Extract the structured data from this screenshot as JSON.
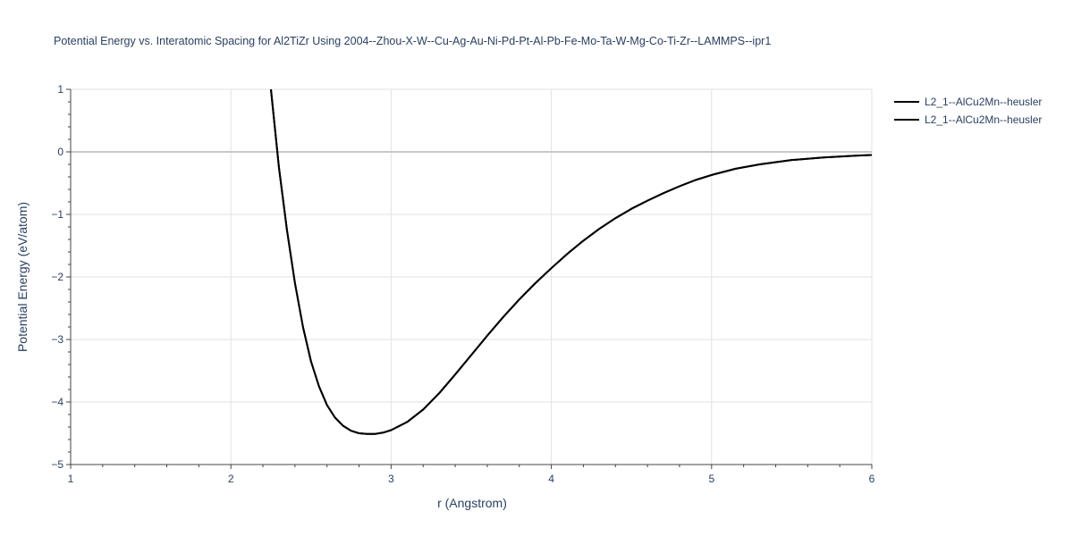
{
  "chart_data": {
    "type": "line",
    "title": "Potential Energy vs. Interatomic Spacing for Al2TiZr Using 2004--Zhou-X-W--Cu-Ag-Au-Ni-Pd-Pt-Al-Pb-Fe-Mo-Ta-W-Mg-Co-Ti-Zr--LAMMPS--ipr1",
    "xlabel": "r (Angstrom)",
    "ylabel": "Potential Energy (eV/atom)",
    "xlim": [
      1,
      6
    ],
    "ylim": [
      -5,
      1
    ],
    "xticks": [
      "1",
      "2",
      "3",
      "4",
      "5",
      "6"
    ],
    "yticks": [
      "−5",
      "−4",
      "−3",
      "−2",
      "−1",
      "0",
      "1"
    ],
    "grid": true,
    "legend_position": "top-right",
    "series": [
      {
        "name": "L2_1--AlCu2Mn--heusler",
        "color": "#000000",
        "x": [
          2.25,
          2.3,
          2.35,
          2.4,
          2.45,
          2.5,
          2.55,
          2.6,
          2.65,
          2.7,
          2.75,
          2.8,
          2.85,
          2.9,
          2.95,
          3.0,
          3.1,
          3.2,
          3.3,
          3.4,
          3.5,
          3.6,
          3.7,
          3.8,
          3.9,
          4.0,
          4.1,
          4.2,
          4.3,
          4.4,
          4.5,
          4.6,
          4.7,
          4.8,
          4.9,
          5.0,
          5.15,
          5.3,
          5.5,
          5.7,
          5.9,
          6.0
        ],
        "y": [
          1.0,
          -0.25,
          -1.25,
          -2.1,
          -2.8,
          -3.35,
          -3.75,
          -4.05,
          -4.25,
          -4.38,
          -4.46,
          -4.5,
          -4.51,
          -4.51,
          -4.49,
          -4.45,
          -4.32,
          -4.12,
          -3.86,
          -3.56,
          -3.25,
          -2.94,
          -2.64,
          -2.36,
          -2.1,
          -1.86,
          -1.63,
          -1.42,
          -1.23,
          -1.06,
          -0.91,
          -0.78,
          -0.66,
          -0.55,
          -0.45,
          -0.37,
          -0.27,
          -0.2,
          -0.13,
          -0.09,
          -0.06,
          -0.05
        ]
      },
      {
        "name": "L2_1--AlCu2Mn--heusler",
        "color": "#000000",
        "x": [
          2.25,
          2.3,
          2.35,
          2.4,
          2.45,
          2.5,
          2.55,
          2.6,
          2.65,
          2.7,
          2.75,
          2.8,
          2.85,
          2.9,
          2.95,
          3.0,
          3.1,
          3.2,
          3.3,
          3.4,
          3.5,
          3.6,
          3.7,
          3.8,
          3.9,
          4.0,
          4.1,
          4.2,
          4.3,
          4.4,
          4.5,
          4.6,
          4.7,
          4.8,
          4.9,
          5.0,
          5.15,
          5.3,
          5.5,
          5.7,
          5.9,
          6.0
        ],
        "y": [
          1.0,
          -0.25,
          -1.25,
          -2.1,
          -2.8,
          -3.35,
          -3.75,
          -4.05,
          -4.25,
          -4.38,
          -4.46,
          -4.5,
          -4.51,
          -4.51,
          -4.49,
          -4.45,
          -4.32,
          -4.12,
          -3.86,
          -3.56,
          -3.25,
          -2.94,
          -2.64,
          -2.36,
          -2.1,
          -1.86,
          -1.63,
          -1.42,
          -1.23,
          -1.06,
          -0.91,
          -0.78,
          -0.66,
          -0.55,
          -0.45,
          -0.37,
          -0.27,
          -0.2,
          -0.13,
          -0.09,
          -0.06,
          -0.05
        ]
      }
    ]
  }
}
